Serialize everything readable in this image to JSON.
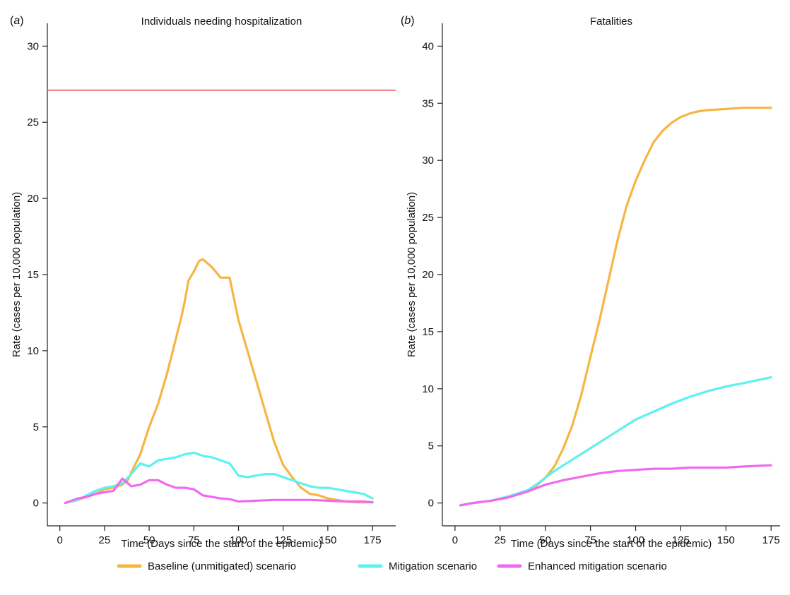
{
  "chart_data": [
    {
      "type": "line",
      "panel_label": "a",
      "title": "Individuals needing hospitalization",
      "xlabel": "Time (Days since the start of the epidemic)",
      "ylabel": "Rate (cases per 10,000 population)",
      "xlim": [
        -7,
        188
      ],
      "ylim": [
        -1.5,
        31.5
      ],
      "xticks": [
        0,
        25,
        50,
        75,
        100,
        125,
        150,
        175
      ],
      "yticks": [
        0,
        5,
        10,
        15,
        20,
        25,
        30
      ],
      "grid": false,
      "reference_line": {
        "y": 27.1,
        "color": "#f07c82"
      },
      "series": [
        {
          "name": "Baseline (unmitigated) scenario",
          "color": "#f5b642",
          "x": [
            3,
            10,
            15,
            20,
            25,
            30,
            35,
            38,
            40,
            45,
            50,
            55,
            60,
            65,
            68,
            70,
            72,
            75,
            78,
            80,
            85,
            90,
            95,
            100,
            105,
            110,
            115,
            120,
            125,
            130,
            135,
            140,
            145,
            150,
            155,
            160,
            165,
            170,
            175
          ],
          "values": [
            0,
            0.2,
            0.4,
            0.6,
            0.9,
            1.0,
            1.2,
            1.5,
            2.0,
            3.2,
            5.0,
            6.5,
            8.5,
            10.8,
            12.2,
            13.3,
            14.6,
            15.2,
            15.9,
            16.0,
            15.5,
            14.8,
            14.8,
            12.0,
            10.0,
            8.0,
            6.0,
            4.0,
            2.5,
            1.7,
            1.0,
            0.6,
            0.5,
            0.3,
            0.2,
            0.1,
            0.05,
            0.05,
            0.05
          ]
        },
        {
          "name": "Mitigation scenario",
          "color": "#5ff0f0",
          "x": [
            3,
            10,
            15,
            20,
            25,
            30,
            35,
            40,
            45,
            50,
            55,
            60,
            65,
            70,
            75,
            80,
            85,
            90,
            95,
            100,
            105,
            110,
            115,
            120,
            125,
            130,
            135,
            140,
            145,
            150,
            155,
            160,
            165,
            170,
            175
          ],
          "values": [
            0,
            0.2,
            0.5,
            0.8,
            1.0,
            1.1,
            1.3,
            1.9,
            2.6,
            2.4,
            2.8,
            2.9,
            3.0,
            3.2,
            3.3,
            3.1,
            3.0,
            2.8,
            2.6,
            1.8,
            1.7,
            1.8,
            1.9,
            1.9,
            1.7,
            1.5,
            1.3,
            1.1,
            1.0,
            1.0,
            0.9,
            0.8,
            0.7,
            0.6,
            0.3
          ]
        },
        {
          "name": "Enhanced mitigation scenario",
          "color": "#f06af0",
          "x": [
            3,
            10,
            15,
            20,
            25,
            30,
            35,
            40,
            45,
            50,
            55,
            60,
            65,
            70,
            75,
            80,
            85,
            90,
            95,
            100,
            110,
            120,
            130,
            140,
            150,
            160,
            170,
            175
          ],
          "values": [
            0,
            0.3,
            0.4,
            0.6,
            0.7,
            0.8,
            1.6,
            1.1,
            1.2,
            1.5,
            1.5,
            1.2,
            1.0,
            1.0,
            0.9,
            0.5,
            0.4,
            0.3,
            0.25,
            0.1,
            0.15,
            0.2,
            0.2,
            0.2,
            0.15,
            0.1,
            0.1,
            0.05
          ]
        }
      ]
    },
    {
      "type": "line",
      "panel_label": "b",
      "title": "Fatalities",
      "xlabel": "Time (Days since the start of the epidemic)",
      "ylabel": "Rate (cases per 10,000 population)",
      "xlim": [
        -7,
        180
      ],
      "ylim": [
        -2,
        42
      ],
      "xticks": [
        0,
        25,
        50,
        75,
        100,
        125,
        150,
        175
      ],
      "yticks": [
        0,
        5,
        10,
        15,
        20,
        25,
        30,
        35,
        40
      ],
      "grid": false,
      "series": [
        {
          "name": "Baseline (unmitigated) scenario",
          "color": "#f5b642",
          "x": [
            3,
            10,
            20,
            30,
            40,
            45,
            50,
            55,
            60,
            65,
            70,
            75,
            80,
            85,
            90,
            95,
            100,
            105,
            110,
            115,
            120,
            125,
            130,
            135,
            140,
            150,
            160,
            175
          ],
          "values": [
            -0.2,
            0,
            0.2,
            0.5,
            1.0,
            1.5,
            2.2,
            3.2,
            4.8,
            6.8,
            9.5,
            12.8,
            16.0,
            19.5,
            23.0,
            26.0,
            28.2,
            30.0,
            31.6,
            32.6,
            33.3,
            33.8,
            34.1,
            34.3,
            34.4,
            34.5,
            34.6,
            34.6
          ]
        },
        {
          "name": "Mitigation scenario",
          "color": "#5ff0f0",
          "x": [
            3,
            10,
            20,
            30,
            40,
            45,
            50,
            55,
            60,
            70,
            80,
            90,
            100,
            110,
            120,
            130,
            140,
            150,
            160,
            175
          ],
          "values": [
            -0.2,
            0,
            0.2,
            0.6,
            1.1,
            1.6,
            2.2,
            2.8,
            3.3,
            4.3,
            5.3,
            6.3,
            7.3,
            8.0,
            8.7,
            9.3,
            9.8,
            10.2,
            10.5,
            11.0
          ]
        },
        {
          "name": "Enhanced mitigation scenario",
          "color": "#f06af0",
          "x": [
            3,
            10,
            20,
            30,
            40,
            45,
            50,
            55,
            60,
            70,
            80,
            90,
            100,
            110,
            120,
            130,
            140,
            150,
            160,
            175
          ],
          "values": [
            -0.2,
            0,
            0.2,
            0.5,
            1.0,
            1.3,
            1.6,
            1.8,
            2.0,
            2.3,
            2.6,
            2.8,
            2.9,
            3.0,
            3.0,
            3.1,
            3.1,
            3.1,
            3.2,
            3.3
          ]
        }
      ]
    }
  ],
  "legend": {
    "placement": "bottom-center",
    "items": [
      {
        "label": "Baseline (unmitigated) scenario",
        "color": "#f5b642"
      },
      {
        "label": "Mitigation scenario",
        "color": "#5ff0f0"
      },
      {
        "label": "Enhanced mitigation scenario",
        "color": "#f06af0"
      }
    ]
  }
}
